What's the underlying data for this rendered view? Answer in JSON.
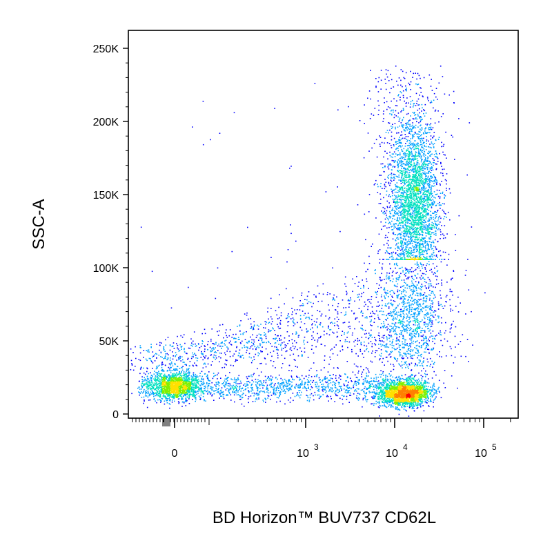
{
  "chart_data": {
    "type": "scatter",
    "style": "flow-cytometry density dot plot",
    "xlabel": "BD Horizon™ BUV737 CD62L",
    "ylabel": "SSC-A",
    "x_scale": "biexponential",
    "y_scale": "linear",
    "xlim": [
      -200,
      200000
    ],
    "ylim": [
      -5000,
      262144
    ],
    "x_ticks": [
      {
        "value": 0,
        "label": "0"
      },
      {
        "value": 1000,
        "label": "10",
        "exp": "3"
      },
      {
        "value": 10000,
        "label": "10",
        "exp": "4"
      },
      {
        "value": 100000,
        "label": "10",
        "exp": "5"
      }
    ],
    "y_ticks": [
      {
        "value": 0,
        "label": "0"
      },
      {
        "value": 50000,
        "label": "50K"
      },
      {
        "value": 100000,
        "label": "100K"
      },
      {
        "value": 150000,
        "label": "150K"
      },
      {
        "value": 200000,
        "label": "200K"
      },
      {
        "value": 250000,
        "label": "250K"
      }
    ],
    "density_colors": [
      "#0000ff",
      "#00a0ff",
      "#00e0c0",
      "#80f000",
      "#ffe000",
      "#ff8000",
      "#ff0000"
    ],
    "populations": [
      {
        "name_hint": "CD62L- lymphocytes",
        "x_center": 0,
        "y_center": 21000,
        "x_spread": "narrow",
        "y_spread": 6000,
        "peak_density": "high"
      },
      {
        "name_hint": "CD62L+ lymphocytes",
        "x_center": 11000,
        "y_center": 16000,
        "y_spread": 4000,
        "peak_density": "max"
      },
      {
        "name_hint": "CD62L+ granulocytes",
        "x_center": 15000,
        "y_center": 160000,
        "y_range": [
          105000,
          240000
        ],
        "peak_density": "medium"
      },
      {
        "name_hint": "CD62L+ monocytes",
        "x_center": 15000,
        "y_center": 65000,
        "y_range": [
          40000,
          85000
        ],
        "peak_density": "low"
      },
      {
        "name_hint": "horizontal bridge",
        "x_range": [
          0,
          8000
        ],
        "y_center": 21000,
        "peak_density": "low"
      },
      {
        "name_hint": "diagonal scatter",
        "x_range": [
          50,
          8000
        ],
        "y_range": [
          25000,
          90000
        ],
        "peak_density": "sparse"
      }
    ]
  }
}
